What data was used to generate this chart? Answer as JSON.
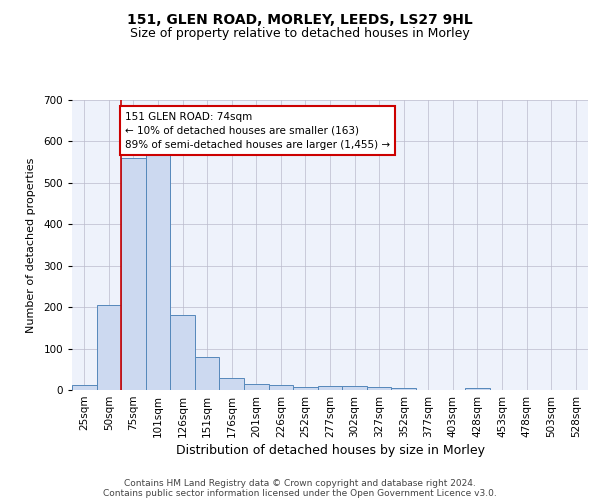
{
  "title1": "151, GLEN ROAD, MORLEY, LEEDS, LS27 9HL",
  "title2": "Size of property relative to detached houses in Morley",
  "xlabel": "Distribution of detached houses by size in Morley",
  "ylabel": "Number of detached properties",
  "footer_line1": "Contains HM Land Registry data © Crown copyright and database right 2024.",
  "footer_line2": "Contains public sector information licensed under the Open Government Licence v3.0.",
  "bin_labels": [
    "25sqm",
    "50sqm",
    "75sqm",
    "101sqm",
    "126sqm",
    "151sqm",
    "176sqm",
    "201sqm",
    "226sqm",
    "252sqm",
    "277sqm",
    "302sqm",
    "327sqm",
    "352sqm",
    "377sqm",
    "403sqm",
    "428sqm",
    "453sqm",
    "478sqm",
    "503sqm",
    "528sqm"
  ],
  "bar_values": [
    13,
    205,
    560,
    570,
    180,
    80,
    30,
    15,
    13,
    7,
    10,
    10,
    8,
    4,
    0,
    0,
    5,
    0,
    0,
    0,
    0
  ],
  "bar_color": "#ccd9f0",
  "bar_edge_color": "#5588bb",
  "property_line_color": "#cc0000",
  "annotation_text": "151 GLEN ROAD: 74sqm\n← 10% of detached houses are smaller (163)\n89% of semi-detached houses are larger (1,455) →",
  "annotation_box_color": "white",
  "annotation_box_edge_color": "#cc0000",
  "ylim": [
    0,
    700
  ],
  "yticks": [
    0,
    100,
    200,
    300,
    400,
    500,
    600,
    700
  ],
  "background_color": "#eef2fb",
  "grid_color": "#bbbbcc",
  "title1_fontsize": 10,
  "title2_fontsize": 9,
  "xlabel_fontsize": 9,
  "ylabel_fontsize": 8,
  "tick_fontsize": 7.5,
  "annot_fontsize": 7.5,
  "footer_fontsize": 6.5
}
